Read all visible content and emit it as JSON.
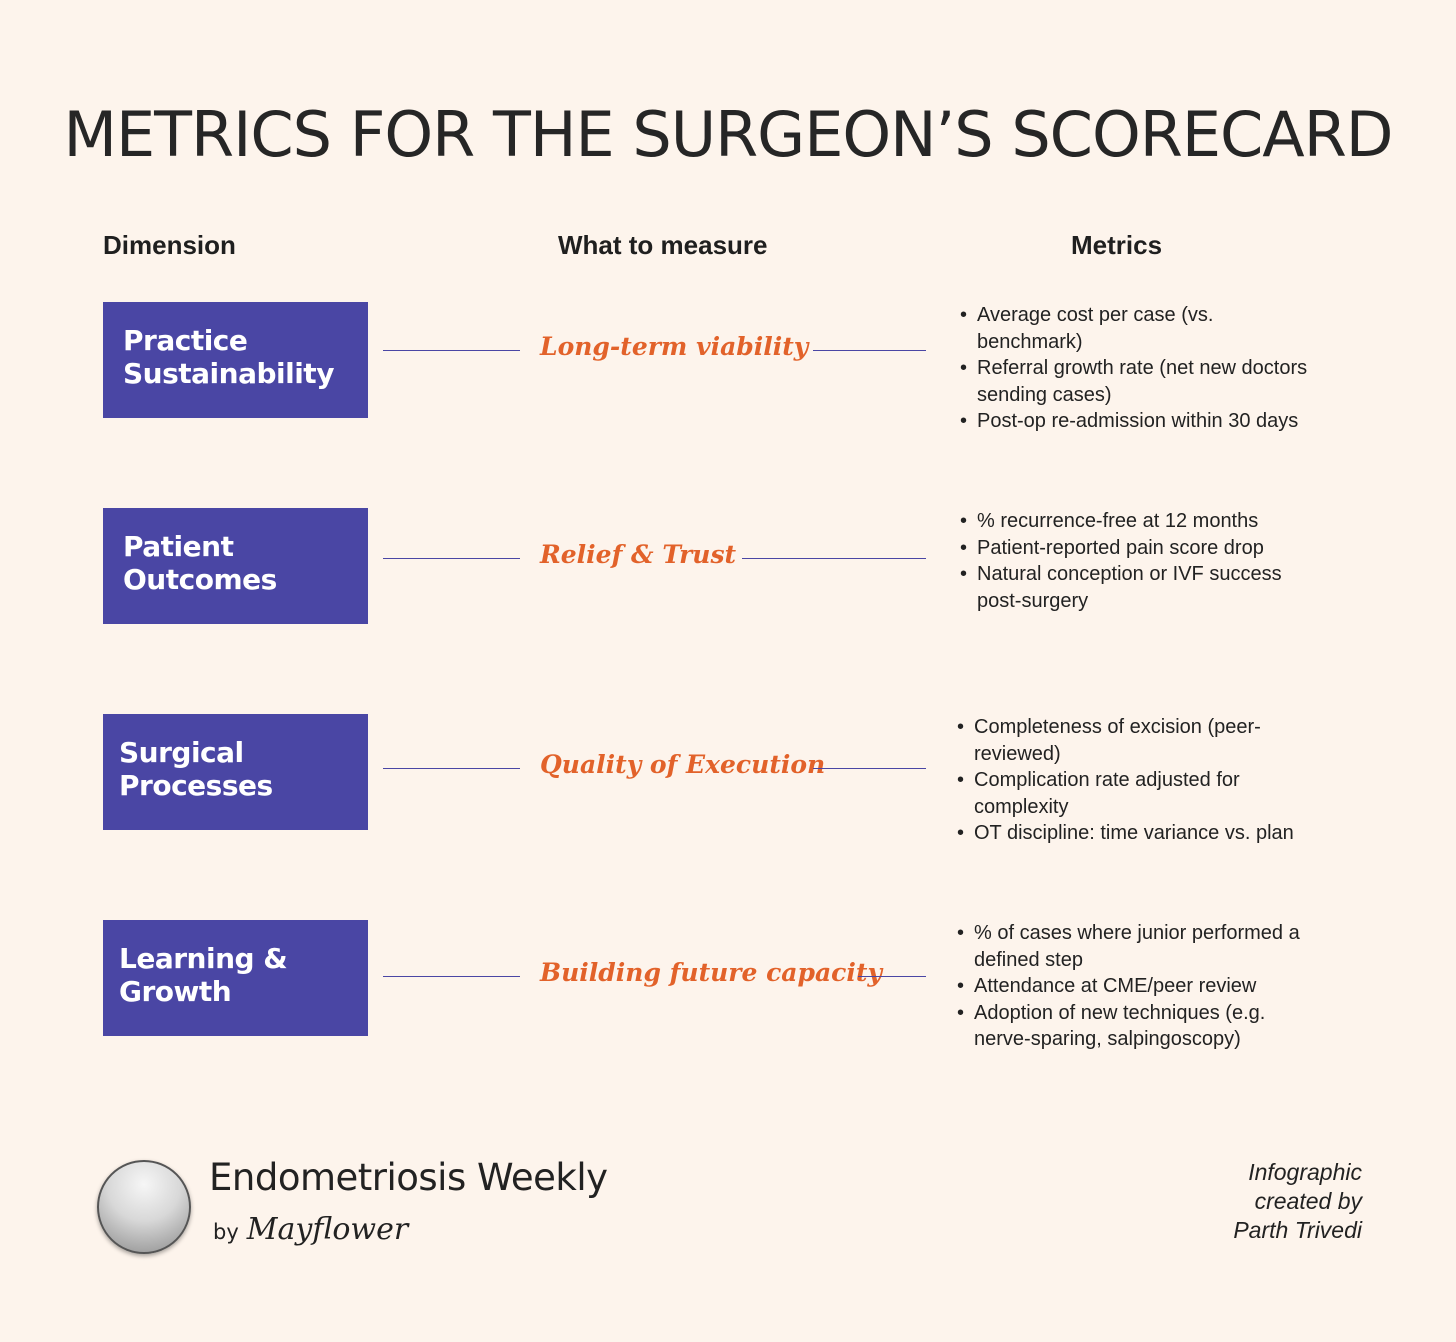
{
  "title": "METRICS FOR THE SURGEON’S SCORECARD",
  "headers": {
    "dimension": "Dimension",
    "measure": "What to measure",
    "metrics": "Metrics"
  },
  "rows": [
    {
      "dimension_line1": "Practice",
      "dimension_line2": "Sustainability",
      "measure": "Long-term viability",
      "metrics": [
        "Average cost per case (vs. benchmark)",
        "Referral growth rate (net new doctors sending cases)",
        "Post-op re-admission within 30 days"
      ]
    },
    {
      "dimension_line1": "Patient",
      "dimension_line2": "Outcomes",
      "measure": "Relief & Trust",
      "metrics": [
        "% recurrence-free at 12 months",
        "Patient-reported pain score drop",
        "Natural conception or IVF success post-surgery"
      ]
    },
    {
      "dimension_line1": "Surgical",
      "dimension_line2": "Processes",
      "measure": "Quality of Execution",
      "metrics": [
        "Completeness of excision (peer-reviewed)",
        "Complication rate adjusted for complexity",
        "OT discipline: time variance vs. plan"
      ]
    },
    {
      "dimension_line1": "Learning &",
      "dimension_line2": "Growth",
      "measure": "Building future capacity",
      "metrics": [
        "% of cases where junior performed a defined step",
        "Attendance at CME/peer review",
        "Adoption of new techniques (e.g. nerve-sparing, salpingoscopy)"
      ]
    }
  ],
  "footer": {
    "brand": "Endometriosis Weekly",
    "by": "by",
    "publisher": "Mayflower",
    "credit_line1": "Infographic",
    "credit_line2": "created by",
    "credit_line3": "Parth Trivedi"
  },
  "colors": {
    "background": "#fdf4ec",
    "dimension_box": "#4a46a4",
    "measure_text": "#e2622a"
  }
}
